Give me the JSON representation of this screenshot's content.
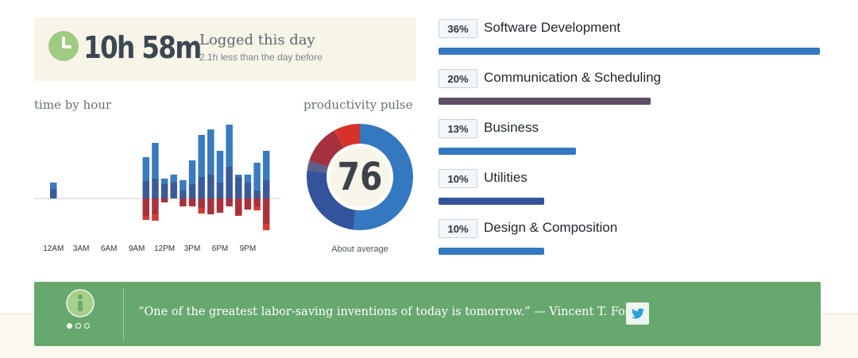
{
  "summary": {
    "total_time": "10h 58m",
    "caption": "Logged this day",
    "comparison": "2.1h less than the day before",
    "icon": "clock-icon",
    "icon_color": "#9fcb83"
  },
  "hour_chart": {
    "title": "time by hour",
    "x_tick_labels": [
      "12AM",
      "3AM",
      "6AM",
      "9AM",
      "12PM",
      "3PM",
      "6PM",
      "9PM"
    ]
  },
  "chart_data": [
    {
      "type": "bar",
      "note_units": "relative activity per hour (unlabeled axis)",
      "categories": [
        "12AM",
        "1AM",
        "2AM",
        "3AM",
        "4AM",
        "5AM",
        "6AM",
        "7AM",
        "8AM",
        "9AM",
        "10AM",
        "11AM",
        "12PM",
        "1PM",
        "2PM",
        "3PM",
        "4PM",
        "5PM",
        "6PM",
        "7PM",
        "8PM",
        "9PM",
        "10PM",
        "11PM"
      ],
      "series": [
        {
          "color": "#3a7bbf",
          "values": [
            8,
            0,
            0,
            0,
            0,
            0,
            0,
            0,
            0,
            0,
            30,
            45,
            7,
            10,
            13,
            30,
            53,
            57,
            40,
            53,
            3,
            10,
            35,
            37
          ]
        },
        {
          "color": "#3b5a99",
          "values": [
            12,
            0,
            0,
            0,
            0,
            0,
            0,
            0,
            0,
            0,
            22,
            25,
            18,
            20,
            10,
            18,
            27,
            30,
            20,
            40,
            27,
            20,
            10,
            23
          ]
        },
        {
          "color": "#a8323c",
          "values": [
            0,
            0,
            0,
            0,
            0,
            0,
            0,
            0,
            0,
            0,
            -22,
            -20,
            -5,
            0,
            -10,
            -10,
            -12,
            -20,
            -18,
            -10,
            -20,
            -14,
            -10,
            -32
          ]
        },
        {
          "color": "#d53a33",
          "values": [
            0,
            0,
            0,
            0,
            0,
            0,
            0,
            0,
            0,
            0,
            -5,
            -8,
            0,
            0,
            0,
            0,
            -7,
            0,
            0,
            0,
            -2,
            0,
            -5,
            -8
          ]
        }
      ],
      "xlabel": "",
      "ylabel": ""
    },
    {
      "type": "pie",
      "title": "productivity pulse",
      "score": 76,
      "slices": [
        {
          "value": 52,
          "color": "#3478c0"
        },
        {
          "value": 25,
          "color": "#33549a"
        },
        {
          "value": 3,
          "color": "#5f5e88"
        },
        {
          "value": 12,
          "color": "#a5313c"
        },
        {
          "value": 8,
          "color": "#d6322c"
        }
      ]
    },
    {
      "type": "bar",
      "categories": [
        "Software Development",
        "Communication & Scheduling",
        "Business",
        "Utilities",
        "Design & Composition"
      ],
      "values": [
        36,
        20,
        13,
        10,
        10
      ],
      "unit": "%"
    }
  ],
  "pulse": {
    "title": "productivity pulse",
    "score": "76",
    "caption": "About average"
  },
  "categories": [
    {
      "percent": "36%",
      "name": "Software Development",
      "value": 36,
      "color": "#3478c0"
    },
    {
      "percent": "20%",
      "name": "Communication & Scheduling",
      "value": 20,
      "color": "#5d4d67"
    },
    {
      "percent": "13%",
      "name": "Business",
      "value": 13,
      "color": "#3478c0"
    },
    {
      "percent": "10%",
      "name": "Utilities",
      "value": 10,
      "color": "#33549a"
    },
    {
      "percent": "10%",
      "name": "Design & Composition",
      "value": 10,
      "color": "#3478c0"
    }
  ],
  "quote": {
    "text": "“One of the greatest labor-saving inventions of today is tomorrow.” — Vincent T. Foss",
    "info_icon": "info-icon",
    "share_icon": "twitter-icon",
    "background": "#67a86e",
    "pages": 3,
    "active_page": 1
  }
}
